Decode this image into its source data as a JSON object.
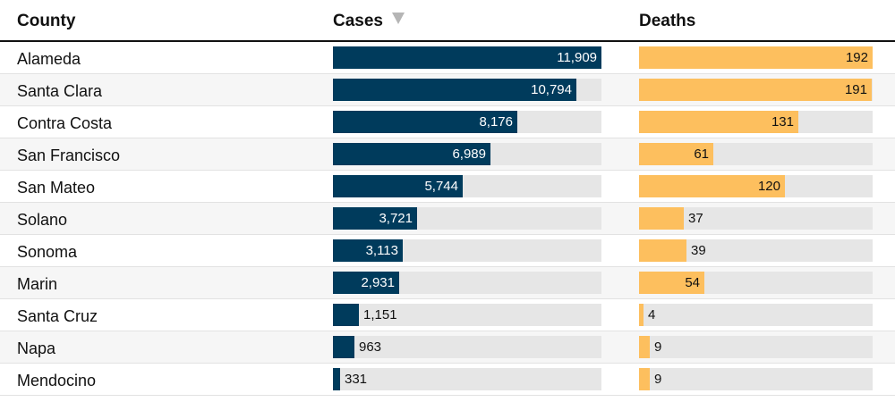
{
  "header": {
    "county_label": "County",
    "cases_label": "Cases",
    "deaths_label": "Deaths"
  },
  "colors": {
    "cases_bar": "#003b5c",
    "deaths_bar": "#fdbf5e",
    "track": "#e6e6e6"
  },
  "chart_data": {
    "type": "bar",
    "categories": [
      "Alameda",
      "Santa Clara",
      "Contra Costa",
      "San Francisco",
      "San Mateo",
      "Solano",
      "Sonoma",
      "Marin",
      "Santa Cruz",
      "Napa",
      "Mendocino"
    ],
    "series": [
      {
        "name": "Cases",
        "values": [
          11909,
          10794,
          8176,
          6989,
          5744,
          3721,
          3113,
          2931,
          1151,
          963,
          331
        ],
        "labels": [
          "11,909",
          "10,794",
          "8,176",
          "6,989",
          "5,744",
          "3,721",
          "3,113",
          "2,931",
          "1,151",
          "963",
          "331"
        ],
        "max": 11909
      },
      {
        "name": "Deaths",
        "values": [
          192,
          191,
          131,
          61,
          120,
          37,
          39,
          54,
          4,
          9,
          9
        ],
        "labels": [
          "192",
          "191",
          "131",
          "61",
          "120",
          "37",
          "39",
          "54",
          "4",
          "9",
          "9"
        ],
        "max": 192
      }
    ],
    "sorted_by": "Cases",
    "sort_order": "descending"
  }
}
